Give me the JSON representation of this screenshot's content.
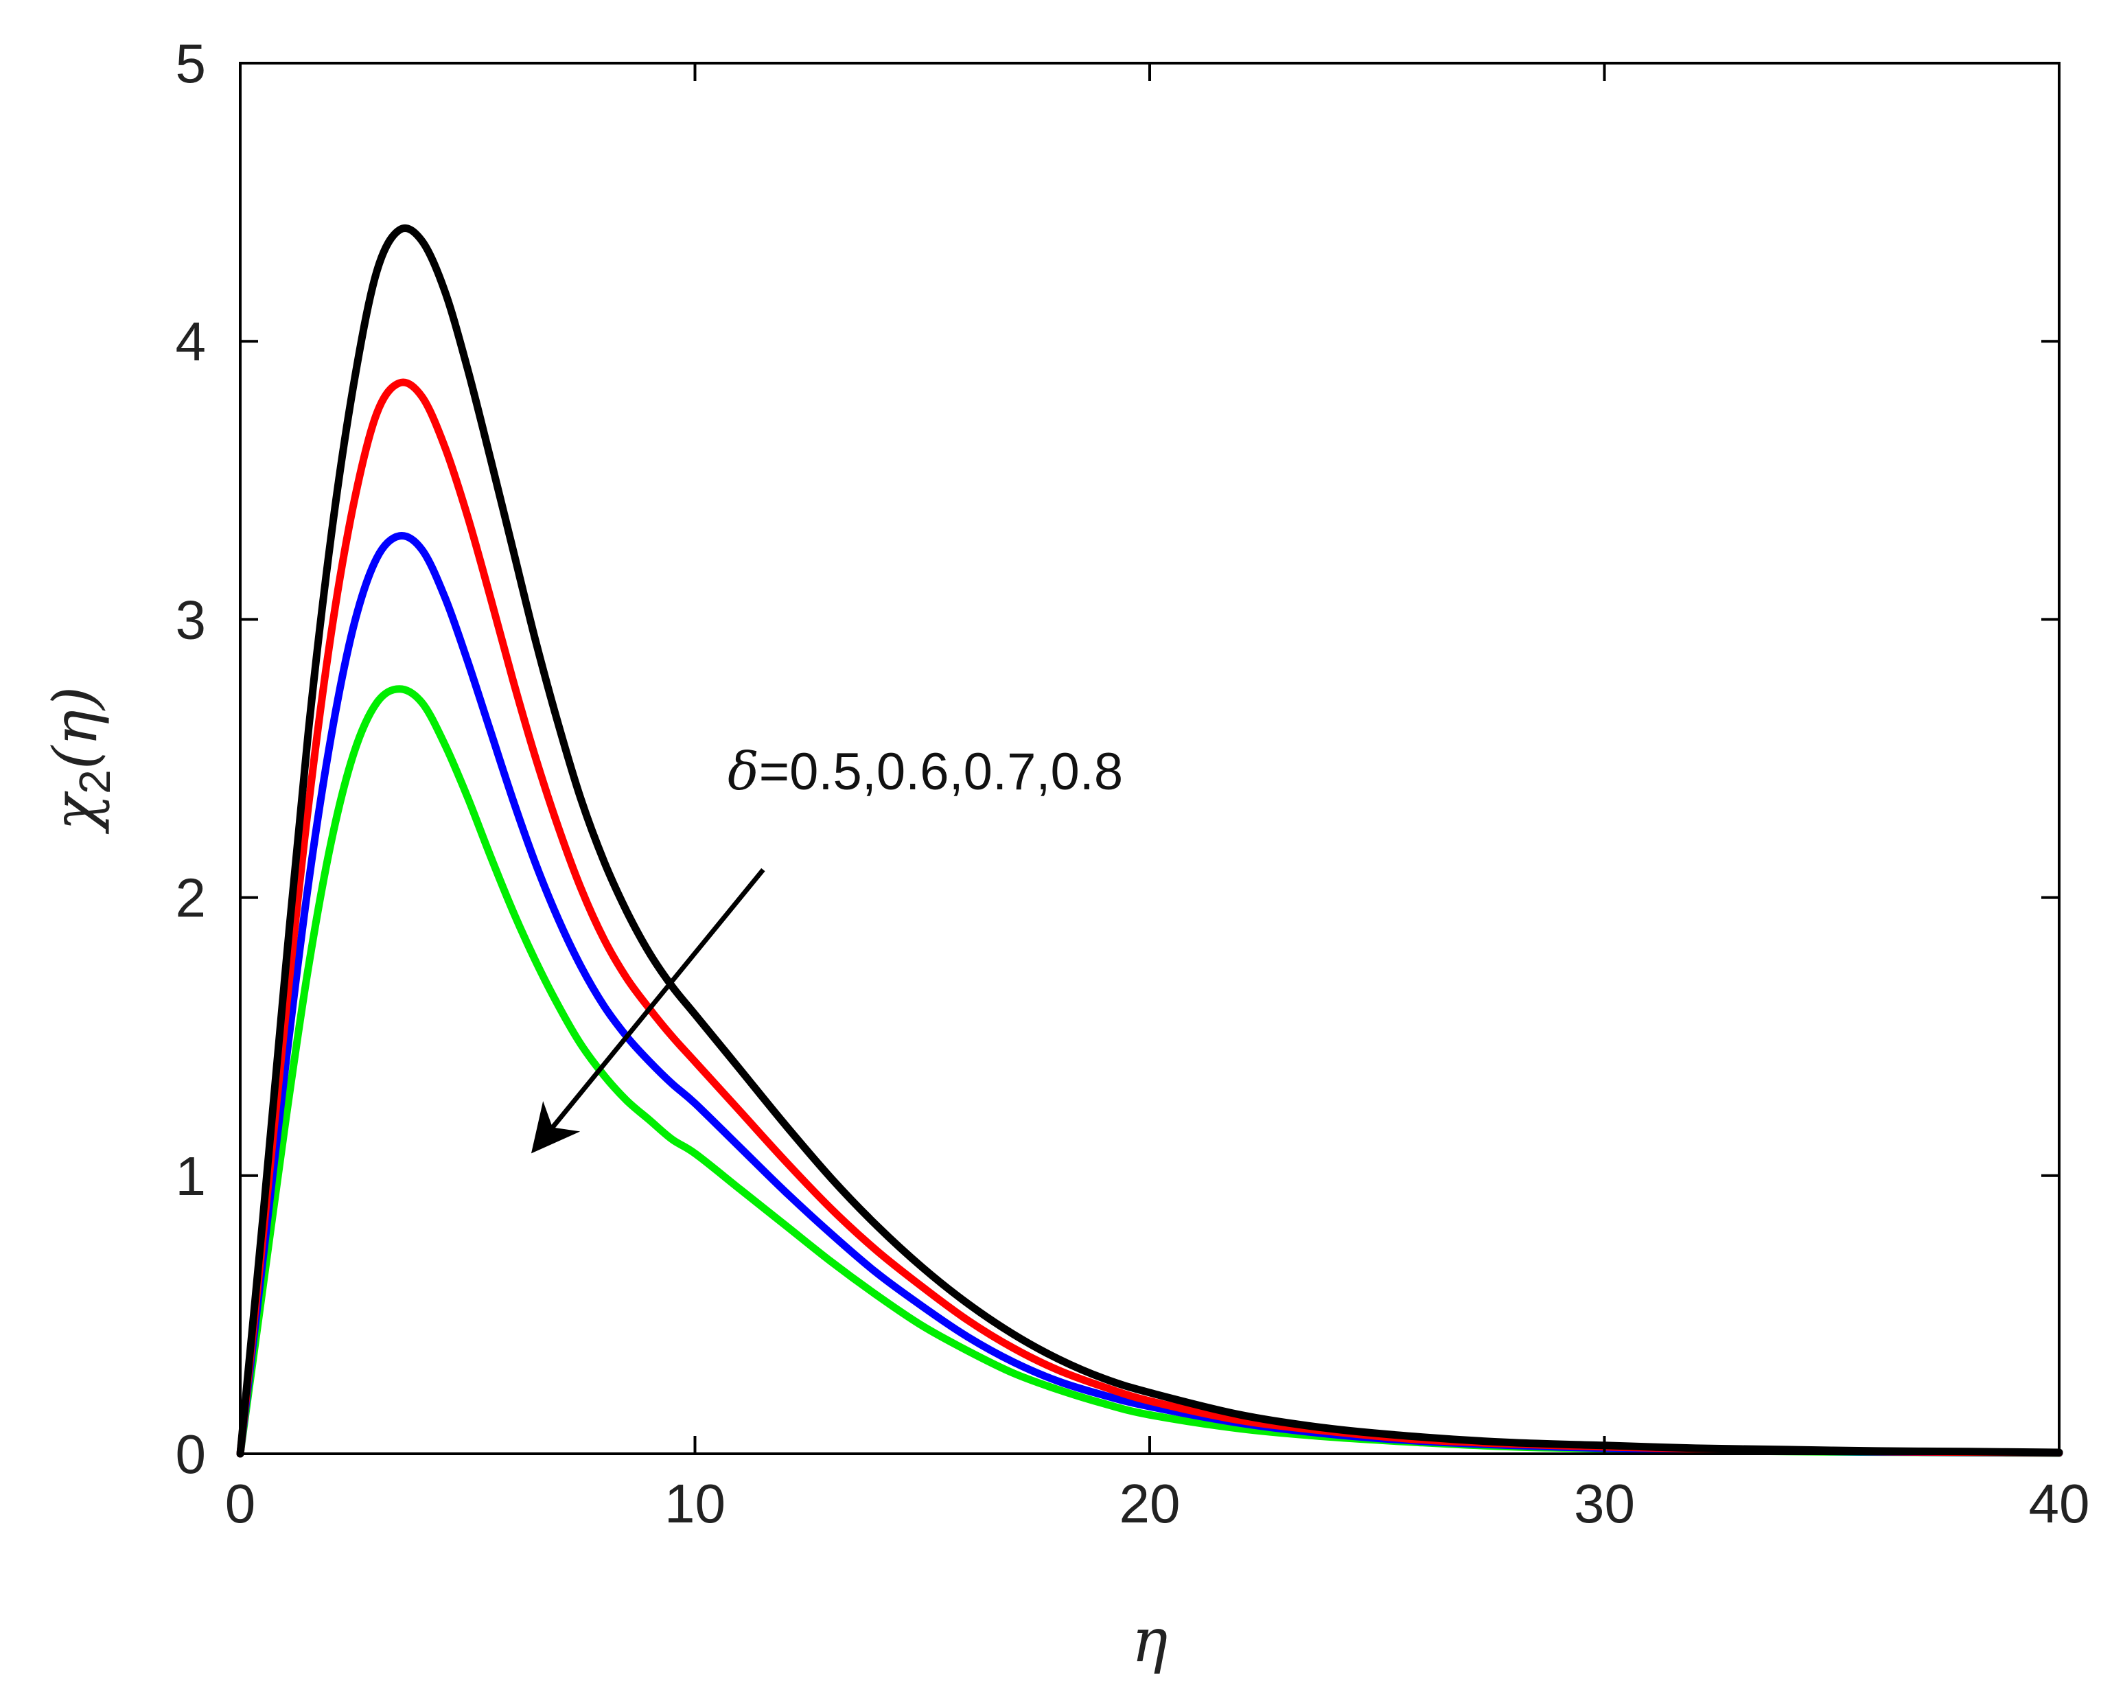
{
  "chart_data": {
    "type": "line",
    "title": "",
    "xlabel": "η",
    "ylabel": {
      "base": "χ",
      "subscript": "2",
      "argument": "(η)"
    },
    "xlim": [
      0,
      40
    ],
    "ylim": [
      0,
      5
    ],
    "xticks": [
      0,
      10,
      20,
      30,
      40
    ],
    "yticks": [
      0,
      1,
      2,
      3,
      4,
      5
    ],
    "x_tick_labels": [
      "0",
      "10",
      "20",
      "30",
      "40"
    ],
    "y_tick_labels": [
      "0",
      "1",
      "2",
      "3",
      "4",
      "5"
    ],
    "grid": false,
    "legend": "none",
    "x": [
      0,
      0.5,
      1,
      1.5,
      2,
      2.5,
      3,
      3.5,
      4,
      4.5,
      5,
      5.5,
      6,
      6.5,
      7,
      7.5,
      8,
      8.5,
      9,
      9.5,
      10,
      11,
      12,
      13,
      14,
      15,
      16,
      17,
      18,
      19,
      20,
      22,
      24,
      26,
      28,
      30,
      32,
      34,
      36,
      38,
      40
    ],
    "series": [
      {
        "color": "#000000",
        "values": [
          0,
          0.85,
          1.75,
          2.6,
          3.3,
          3.85,
          4.25,
          4.4,
          4.36,
          4.18,
          3.9,
          3.58,
          3.25,
          2.92,
          2.62,
          2.35,
          2.13,
          1.95,
          1.8,
          1.68,
          1.58,
          1.38,
          1.18,
          0.99,
          0.82,
          0.67,
          0.54,
          0.43,
          0.34,
          0.27,
          0.22,
          0.14,
          0.09,
          0.06,
          0.04,
          0.03,
          0.02,
          0.015,
          0.01,
          0.008,
          0.005
        ]
      },
      {
        "color": "#ff0000",
        "values": [
          0,
          0.78,
          1.58,
          2.33,
          2.95,
          3.42,
          3.74,
          3.85,
          3.8,
          3.62,
          3.37,
          3.08,
          2.78,
          2.5,
          2.25,
          2.03,
          1.85,
          1.71,
          1.6,
          1.5,
          1.41,
          1.23,
          1.05,
          0.88,
          0.73,
          0.6,
          0.48,
          0.38,
          0.3,
          0.24,
          0.19,
          0.12,
          0.08,
          0.05,
          0.035,
          0.025,
          0.018,
          0.012,
          0.008,
          0.006,
          0.004
        ]
      },
      {
        "color": "#0000ff",
        "values": [
          0,
          0.7,
          1.4,
          2.05,
          2.58,
          2.98,
          3.22,
          3.3,
          3.25,
          3.08,
          2.85,
          2.6,
          2.35,
          2.12,
          1.92,
          1.75,
          1.61,
          1.5,
          1.41,
          1.33,
          1.26,
          1.1,
          0.94,
          0.79,
          0.65,
          0.53,
          0.42,
          0.33,
          0.26,
          0.21,
          0.17,
          0.11,
          0.07,
          0.045,
          0.03,
          0.02,
          0.015,
          0.01,
          0.007,
          0.005,
          0.003
        ]
      },
      {
        "color": "#00ee00",
        "values": [
          0,
          0.6,
          1.2,
          1.75,
          2.2,
          2.52,
          2.7,
          2.75,
          2.7,
          2.55,
          2.36,
          2.15,
          1.95,
          1.77,
          1.61,
          1.47,
          1.36,
          1.27,
          1.2,
          1.13,
          1.08,
          0.95,
          0.82,
          0.69,
          0.57,
          0.46,
          0.37,
          0.29,
          0.23,
          0.18,
          0.14,
          0.09,
          0.06,
          0.04,
          0.025,
          0.018,
          0.012,
          0.008,
          0.006,
          0.004,
          0.002
        ]
      }
    ],
    "annotation": {
      "symbol": "δ",
      "text": "=0.5,0.6,0.7,0.8",
      "arrow": {
        "from": [
          11.5,
          2.1
        ],
        "to": [
          6.6,
          1.12
        ]
      }
    }
  }
}
